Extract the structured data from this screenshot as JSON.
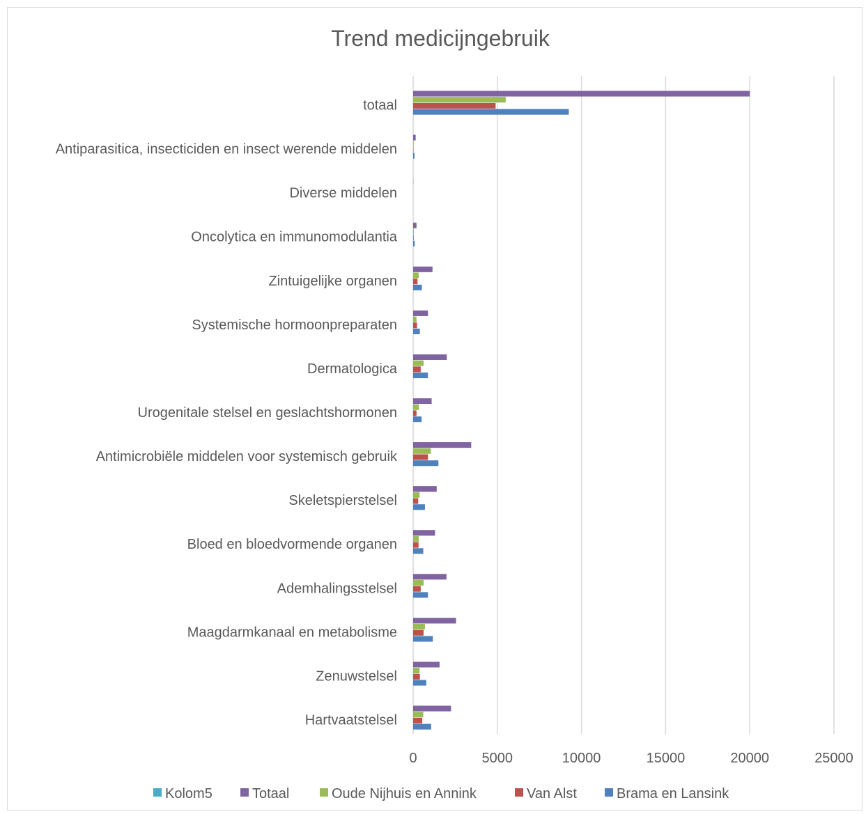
{
  "chart_data": {
    "type": "bar",
    "orientation": "horizontal",
    "title": "Trend medicijngebruik",
    "xlabel": "",
    "ylabel": "",
    "xlim": [
      0,
      25000
    ],
    "x_ticks": [
      "0",
      "5000",
      "10000",
      "15000",
      "20000",
      "25000"
    ],
    "grid": true,
    "legend_position": "bottom",
    "categories": [
      "totaal",
      "Antiparasitica, insecticiden en insect werende middelen",
      "Diverse middelen",
      "Oncolytica en immunomodulantia",
      "Zintuigelijke organen",
      "Systemische hormoonpreparaten",
      "Dermatologica",
      "Urogenitale stelsel en geslachtshormonen",
      "Antimicrobiële middelen voor systemisch gebruik",
      "Skeletspierstelsel",
      "Bloed en bloedvormende organen",
      "Ademhalingsstelsel",
      "Maagdarmkanaal en metabolisme",
      "Zenuwstelsel",
      "Hartvaatstelsel"
    ],
    "series": [
      {
        "name": "Kolom5",
        "color": "#4BACC6",
        "values": [
          0,
          0,
          0,
          0,
          0,
          0,
          0,
          0,
          0,
          0,
          0,
          0,
          0,
          0,
          0
        ]
      },
      {
        "name": "Totaal",
        "color": "#8064A2",
        "values": [
          20000,
          150,
          10,
          200,
          1150,
          880,
          2000,
          1100,
          3450,
          1400,
          1300,
          1980,
          2550,
          1570,
          2250
        ]
      },
      {
        "name": "Oude Nijhuis en Annink",
        "color": "#9BBB59",
        "values": [
          5500,
          30,
          0,
          40,
          330,
          200,
          620,
          340,
          1050,
          380,
          330,
          620,
          700,
          380,
          600
        ]
      },
      {
        "name": "Van Alst",
        "color": "#C0504D",
        "values": [
          4900,
          20,
          0,
          30,
          260,
          230,
          450,
          200,
          880,
          300,
          320,
          450,
          620,
          400,
          540
        ]
      },
      {
        "name": "Brama en Lansink",
        "color": "#4F81BD",
        "values": [
          9250,
          80,
          0,
          90,
          520,
          400,
          880,
          500,
          1500,
          700,
          600,
          880,
          1170,
          780,
          1070
        ]
      }
    ]
  }
}
